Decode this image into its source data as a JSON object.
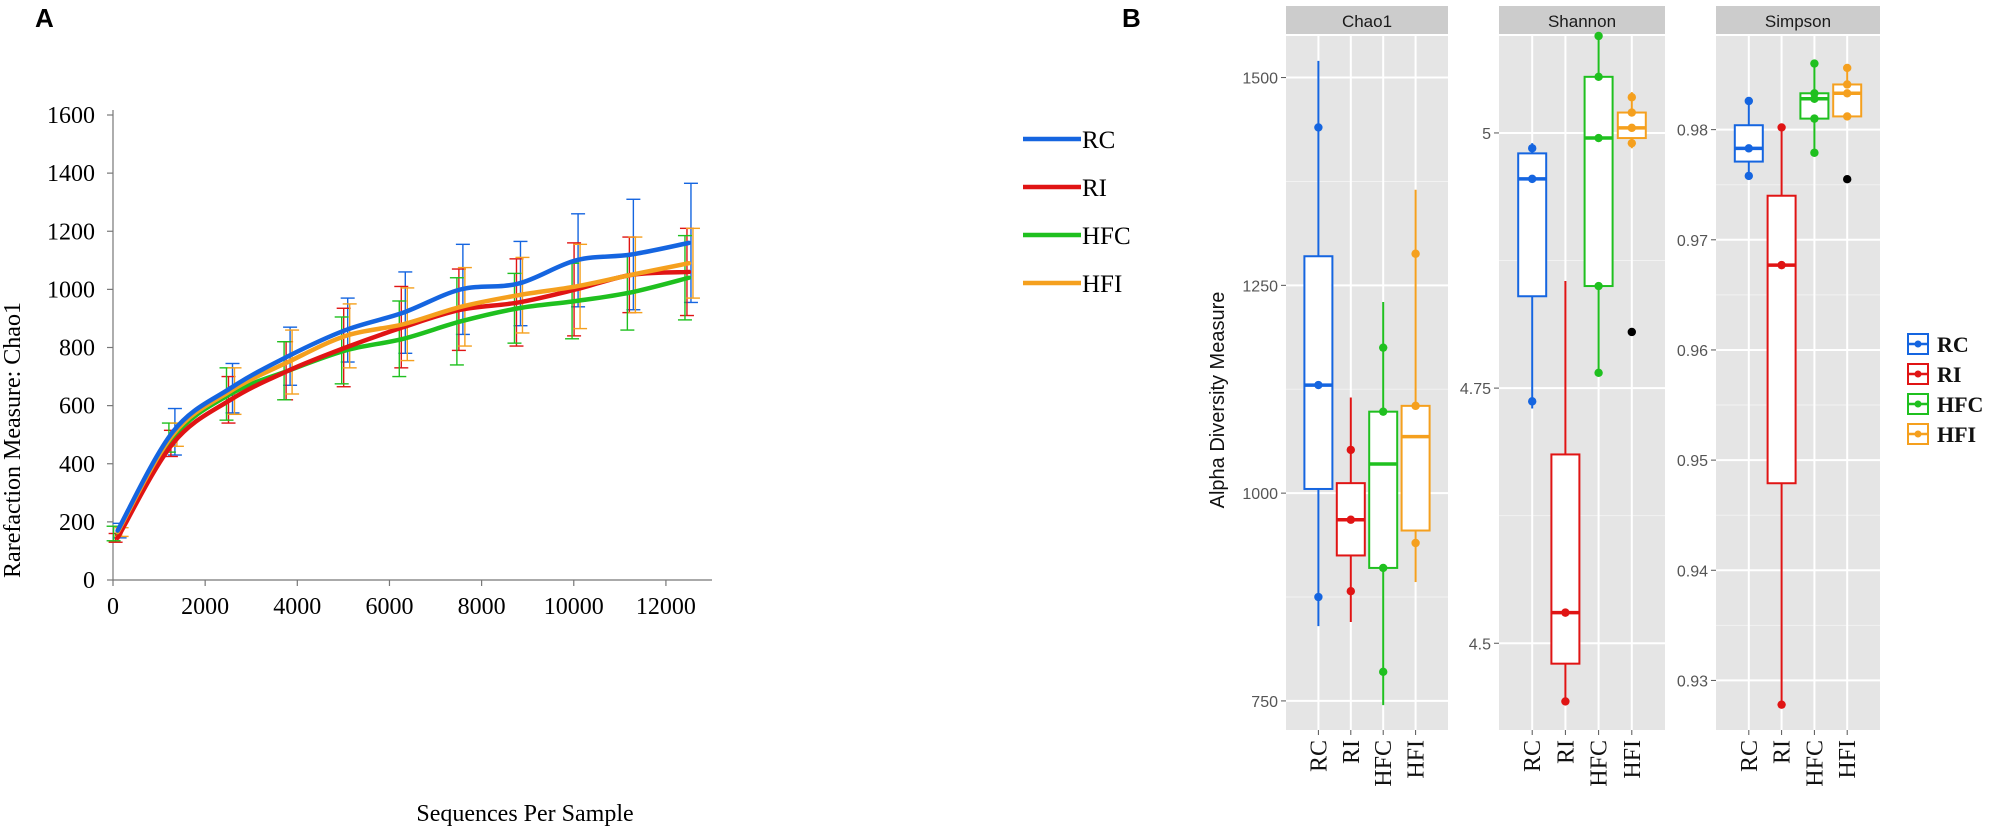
{
  "colors": {
    "RC": "#1565e0",
    "RI": "#e01414",
    "HFC": "#1fc01f",
    "HFI": "#f5a01e",
    "panel_bg": "#e5e5e5",
    "strip_bg": "#cccccc",
    "outlier": "#000000"
  },
  "chart_data": [
    {
      "panel_label": "A",
      "type": "line",
      "title": "",
      "xlabel": "Sequences Per Sample",
      "ylabel": "Rarefaction Measure: Chao1",
      "xlim": [
        0,
        13000
      ],
      "ylim": [
        0,
        1600
      ],
      "xticks": [
        0,
        2000,
        4000,
        6000,
        8000,
        10000,
        12000
      ],
      "yticks": [
        0,
        200,
        400,
        600,
        800,
        1000,
        1200,
        1400,
        1600
      ],
      "legend_position": "right",
      "x": [
        100,
        1300,
        2550,
        3800,
        5050,
        6300,
        7550,
        8800,
        10050,
        11250,
        12500
      ],
      "series": [
        {
          "name": "RC",
          "values": [
            170,
            510,
            660,
            770,
            860,
            920,
            1000,
            1020,
            1100,
            1120,
            1160
          ],
          "err": [
            25,
            80,
            85,
            100,
            110,
            140,
            155,
            145,
            160,
            190,
            205
          ]
        },
        {
          "name": "RI",
          "values": [
            145,
            470,
            620,
            720,
            800,
            870,
            930,
            955,
            1000,
            1050,
            1060
          ],
          "err": [
            15,
            45,
            80,
            100,
            135,
            140,
            140,
            150,
            160,
            130,
            150
          ]
        },
        {
          "name": "HFC",
          "values": [
            160,
            490,
            640,
            720,
            790,
            830,
            890,
            935,
            960,
            990,
            1040
          ],
          "err": [
            25,
            50,
            90,
            100,
            115,
            130,
            150,
            120,
            130,
            130,
            145
          ]
        },
        {
          "name": "HFI",
          "values": [
            165,
            500,
            650,
            750,
            840,
            880,
            940,
            980,
            1010,
            1050,
            1090
          ],
          "err": [
            15,
            40,
            80,
            110,
            110,
            125,
            135,
            130,
            145,
            130,
            120
          ]
        }
      ]
    },
    {
      "panel_label": "B",
      "type": "box",
      "ylabel": "Alpha Diversity Measure",
      "categories": [
        "RC",
        "RI",
        "HFC",
        "HFI"
      ],
      "legend_position": "right",
      "facets": [
        {
          "title": "Chao1",
          "ylim": [
            715,
            1550
          ],
          "yticks": [
            750,
            1000,
            1250,
            1500
          ],
          "boxes": [
            {
              "group": "RC",
              "min": 840,
              "q1": 1005,
              "median": 1130,
              "q3": 1285,
              "max": 1520,
              "outliers": [],
              "points": [
                875,
                1130,
                1440
              ]
            },
            {
              "group": "RI",
              "min": 845,
              "q1": 925,
              "median": 968,
              "q3": 1012,
              "max": 1115,
              "outliers": [],
              "points": [
                882,
                968,
                1052
              ]
            },
            {
              "group": "HFC",
              "min": 745,
              "q1": 910,
              "median": 1035,
              "q3": 1098,
              "max": 1230,
              "outliers": [],
              "points": [
                785,
                910,
                1098,
                1175
              ]
            },
            {
              "group": "HFI",
              "min": 893,
              "q1": 955,
              "median": 1068,
              "q3": 1105,
              "max": 1365,
              "outliers": [],
              "points": [
                940,
                1105,
                1288
              ]
            }
          ]
        },
        {
          "title": "Shannon",
          "ylim": [
            4.415,
            5.095
          ],
          "yticks": [
            4.5,
            4.75,
            5.0
          ],
          "boxes": [
            {
              "group": "RC",
              "min": 4.73,
              "q1": 4.84,
              "median": 4.955,
              "q3": 4.98,
              "max": 4.99,
              "outliers": [],
              "points": [
                4.737,
                4.955,
                4.985
              ]
            },
            {
              "group": "RI",
              "min": 4.44,
              "q1": 4.48,
              "median": 4.53,
              "q3": 4.685,
              "max": 4.855,
              "outliers": [],
              "points": [
                4.443,
                4.53
              ]
            },
            {
              "group": "HFC",
              "min": 4.765,
              "q1": 4.85,
              "median": 4.995,
              "q3": 5.055,
              "max": 5.095,
              "outliers": [],
              "points": [
                4.765,
                4.85,
                4.995,
                5.055,
                5.095
              ]
            },
            {
              "group": "HFI",
              "min": 4.985,
              "q1": 4.995,
              "median": 5.005,
              "q3": 5.02,
              "max": 5.04,
              "outliers": [
                4.805
              ],
              "points": [
                4.99,
                5.005,
                5.02,
                5.035
              ]
            }
          ]
        },
        {
          "title": "Simpson",
          "ylim": [
            0.9255,
            0.9885
          ],
          "yticks": [
            0.93,
            0.94,
            0.95,
            0.96,
            0.97,
            0.98
          ],
          "boxes": [
            {
              "group": "RC",
              "min": 0.9758,
              "q1": 0.9771,
              "median": 0.9783,
              "q3": 0.9804,
              "max": 0.9826,
              "outliers": [],
              "points": [
                0.9758,
                0.9783,
                0.9826
              ]
            },
            {
              "group": "RI",
              "min": 0.9278,
              "q1": 0.9479,
              "median": 0.9677,
              "q3": 0.974,
              "max": 0.9802,
              "outliers": [],
              "points": [
                0.9278,
                0.9677,
                0.9802
              ]
            },
            {
              "group": "HFC",
              "min": 0.9779,
              "q1": 0.981,
              "median": 0.9828,
              "q3": 0.9833,
              "max": 0.986,
              "outliers": [],
              "points": [
                0.9779,
                0.981,
                0.9828,
                0.9833,
                0.986
              ]
            },
            {
              "group": "HFI",
              "min": 0.9812,
              "q1": 0.9812,
              "median": 0.9833,
              "q3": 0.9841,
              "max": 0.9856,
              "outliers": [
                0.9755
              ],
              "points": [
                0.9812,
                0.9833,
                0.9841,
                0.9856
              ]
            }
          ]
        }
      ]
    }
  ]
}
